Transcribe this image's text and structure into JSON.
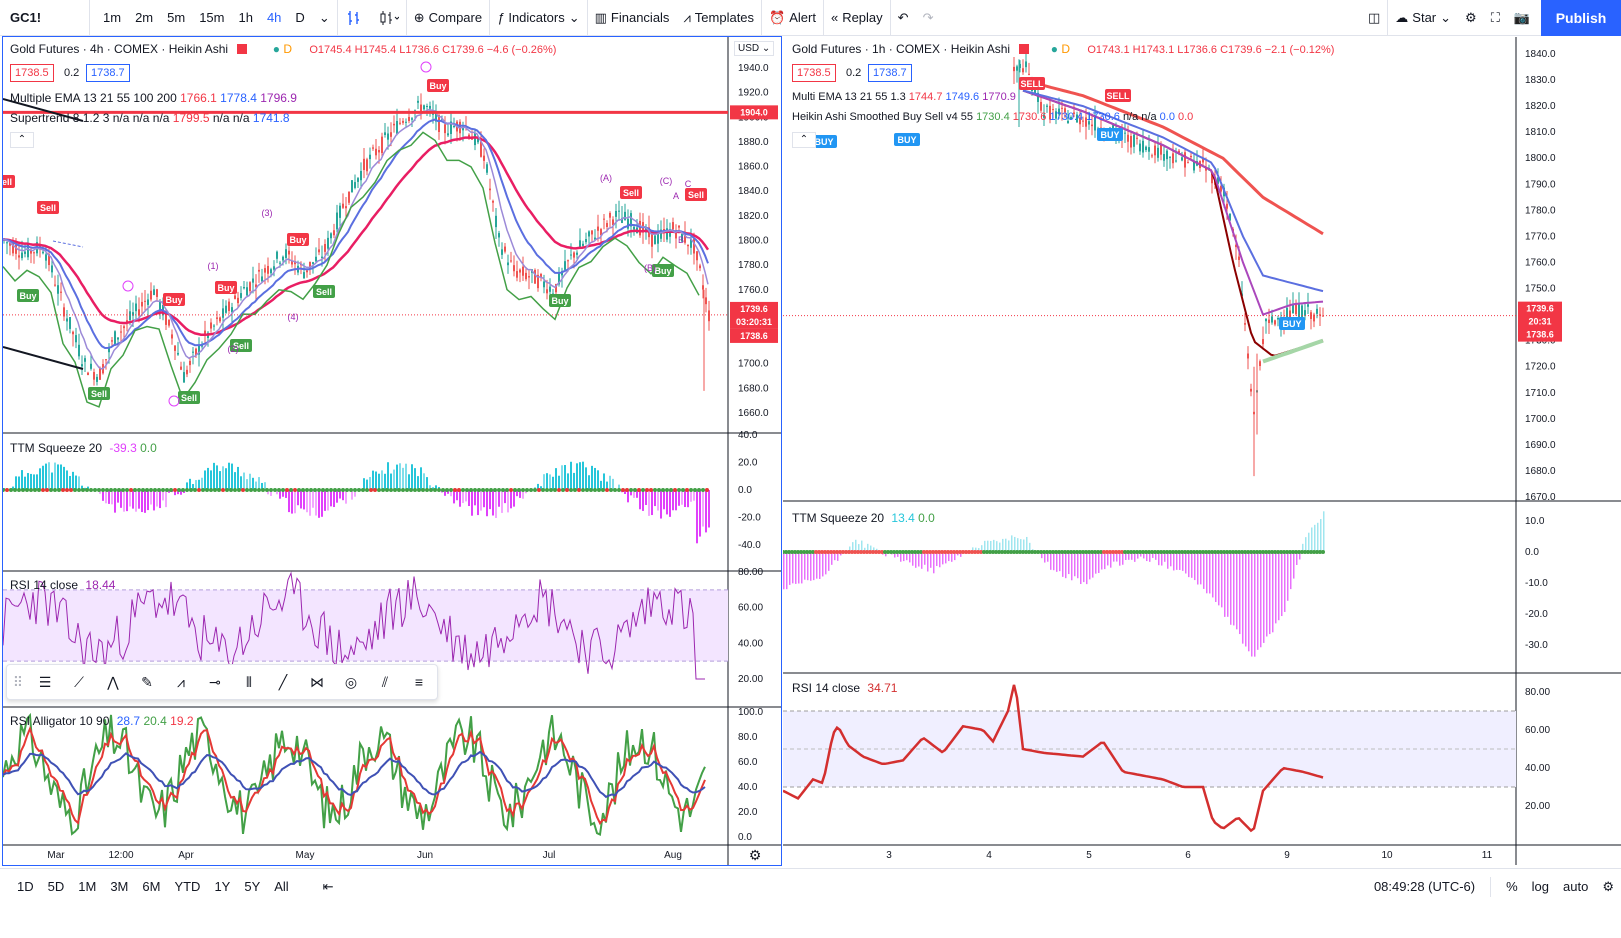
{
  "toolbar": {
    "symbol": "GC1!",
    "intervals": [
      "1m",
      "2m",
      "5m",
      "15m",
      "1h",
      "4h",
      "D"
    ],
    "active_interval": "4h",
    "compare": "Compare",
    "indicators": "Indicators",
    "financials": "Financials",
    "templates": "Templates",
    "alert": "Alert",
    "replay": "Replay",
    "layout_name": "Star",
    "publish": "Publish"
  },
  "left": {
    "title": "Gold Futures · 4h · COMEX · Heikin Ashi",
    "ohlc": "O1745.4 H1745.4 L1736.6 C1739.6 −4.6 (−0.26%)",
    "bid": "1738.5",
    "spread": "0.2",
    "ask": "1738.7",
    "currency": "USD",
    "ind1": "Multiple EMA 13 21 55 100 200",
    "ind1_vals": [
      "1766.1",
      "1778.4",
      "1796.9"
    ],
    "ind2": "Supertrend 8 1.2 3  n/a n/a n/a",
    "ind2_vals": [
      "1799.5",
      "n/a n/a",
      "1741.8"
    ],
    "price_ticks": [
      "1940.0",
      "1920.0",
      "1900.0",
      "1880.0",
      "1860.0",
      "1840.0",
      "1820.0",
      "1800.0",
      "1780.0",
      "1760.0",
      "1740.0",
      "1720.0",
      "1700.0",
      "1680.0",
      "1660.0"
    ],
    "price_tag_line": "1904.0",
    "price_tag_last": "1739.6",
    "price_tag_timer": "03:20:31",
    "price_tag_bid": "1738.6",
    "ttm_label": "TTM Squeeze 20",
    "ttm_vals": [
      "-39.3",
      "0.0"
    ],
    "ttm_ticks": [
      "40.0",
      "20.0",
      "0.0",
      "-20.0",
      "-40.0"
    ],
    "rsi_label": "RSI 14 close",
    "rsi_val": "18.44",
    "rsi_ticks": [
      "80.00",
      "60.00",
      "40.00",
      "20.00"
    ],
    "alli_label": "RSI Alligator 10 90",
    "alli_vals": [
      "28.7",
      "20.4",
      "19.2"
    ],
    "alli_ticks": [
      "100.0",
      "80.0",
      "60.0",
      "40.0",
      "20.0",
      "0.0"
    ],
    "time_ticks": [
      "Mar",
      "12:00",
      "Apr",
      "May",
      "Jun",
      "Jul",
      "Aug"
    ],
    "signals": [
      "Sell",
      "Buy",
      "Sell",
      "Sell",
      "Buy",
      "Sell",
      "Buy",
      "Sell",
      "Buy",
      "Sell",
      "Buy",
      "Buy",
      "Sell",
      "Buy",
      "Sell"
    ],
    "wave_labels": [
      "(1)",
      "(2)",
      "(3)",
      "(4)",
      "(A)",
      "(B)",
      "(C)",
      "A",
      "B",
      "C"
    ]
  },
  "right": {
    "title": "Gold Futures · 1h · COMEX · Heikin Ashi",
    "ohlc": "O1743.1 H1743.1 L1736.6 C1739.6 −2.1 (−0.12%)",
    "bid": "1738.5",
    "spread": "0.2",
    "ask": "1738.7",
    "ind1": "Multi EMA 13 21 55 1.3",
    "ind1_vals": [
      "1744.7",
      "1749.6",
      "1770.9"
    ],
    "ind2": "Heikin Ashi Smoothed Buy Sell v4 55",
    "ind2_vals": [
      "1730.4",
      "1730.6",
      "1730.4",
      "1730.6",
      "n/a n/a",
      "0.0",
      "0.0"
    ],
    "price_ticks": [
      "1840.0",
      "1830.0",
      "1820.0",
      "1810.0",
      "1800.0",
      "1790.0",
      "1780.0",
      "1770.0",
      "1760.0",
      "1750.0",
      "1740.0",
      "1730.0",
      "1720.0",
      "1710.0",
      "1700.0",
      "1690.0",
      "1680.0",
      "1670.0"
    ],
    "price_tag_last": "1739.6",
    "price_tag_timer": "20:31",
    "price_tag_bid": "1738.6",
    "ttm_label": "TTM Squeeze 20",
    "ttm_vals": [
      "13.4",
      "0.0"
    ],
    "ttm_ticks": [
      "10.0",
      "0.0",
      "-10.0",
      "-20.0",
      "-30.0"
    ],
    "rsi_label": "RSI 14 close",
    "rsi_val": "34.71",
    "rsi_ticks": [
      "80.00",
      "60.00",
      "40.00",
      "20.00"
    ],
    "time_ticks": [
      "3",
      "4",
      "5",
      "6",
      "9",
      "10",
      "11"
    ],
    "signals": [
      "SELL",
      "SELL",
      "BUY",
      "BUY",
      "BUY",
      "BUY"
    ]
  },
  "bottom": {
    "ranges": [
      "1D",
      "5D",
      "1M",
      "3M",
      "6M",
      "YTD",
      "1Y",
      "5Y",
      "All"
    ],
    "clock": "08:49:28 (UTC-6)",
    "pct": "%",
    "log": "log",
    "auto": "auto"
  },
  "colors": {
    "accent": "#2962ff",
    "sell": "#f23645",
    "buy": "#26a69a",
    "buy_label": "#43a047",
    "ema_red": "#f23645",
    "ema_blue": "#5b6fe0",
    "squeeze_cyan": "#26c6da",
    "squeeze_magenta": "#e040fb",
    "rsi_purple": "#9c27b0",
    "rsi_red": "#d32f2f"
  }
}
